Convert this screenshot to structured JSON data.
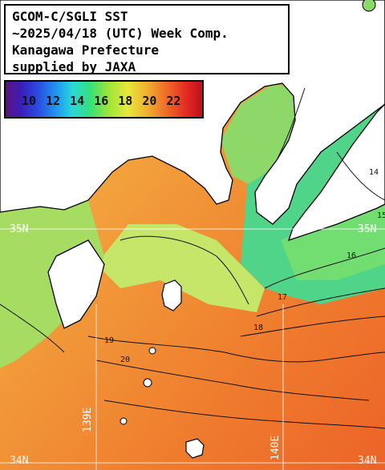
{
  "title": {
    "line1": "GCOM-C/SGLI SST",
    "line2": "~2025/04/18 (UTC) Week Comp.",
    "line3": "Kanagawa Prefecture",
    "line4": "supplied by JAXA"
  },
  "legend": {
    "labels": [
      "10",
      "12",
      "14",
      "16",
      "18",
      "20",
      "22"
    ],
    "colors": [
      "#5b1280",
      "#2a48e0",
      "#2ad8d8",
      "#35e07a",
      "#e8e83a",
      "#ef6a28",
      "#c0101c"
    ]
  },
  "grid": {
    "lat_labels": [
      "35N",
      "35N",
      "34N",
      "34N"
    ],
    "lon_labels": [
      "139E",
      "140E"
    ]
  },
  "contour_labels": [
    "14",
    "15",
    "16",
    "17",
    "18",
    "19",
    "20"
  ]
}
